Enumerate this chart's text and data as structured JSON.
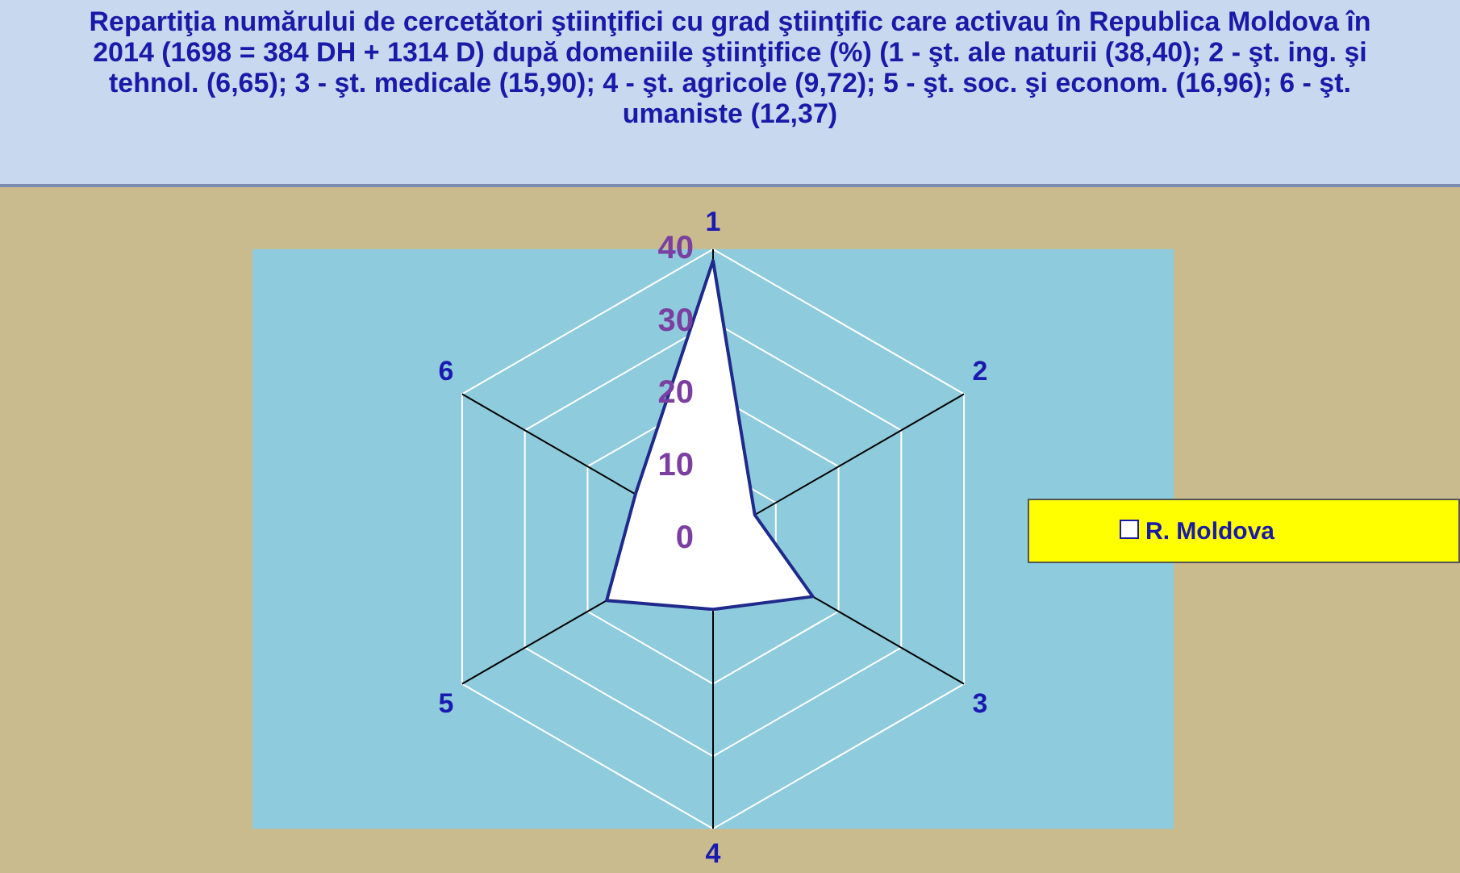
{
  "chart_data": {
    "type": "radar",
    "title": "Repartiţia numărului de cercetători ştiinţifici cu grad ştiinţific care activau în Republica Moldova în 2014 (1698 = 384 DH + 1314 D) după domeniile ştiinţifice (%) (1 - şt. ale naturii (38,40); 2 - şt. ing. şi tehnol. (6,65); 3 - şt. medicale (15,90); 4 - şt. agricole (9,72); 5 - şt. soc. şi econom. (16,96); 6 - şt. umaniste (12,37)",
    "categories": [
      "1",
      "2",
      "3",
      "4",
      "5",
      "6"
    ],
    "series": [
      {
        "name": "R. Moldova",
        "color": "#1f2a8c",
        "values": [
          38.4,
          6.65,
          15.9,
          9.72,
          16.96,
          12.37
        ]
      }
    ],
    "ylim": [
      0,
      40
    ],
    "yticks": [
      0,
      10,
      20,
      30,
      40
    ],
    "grid": true,
    "legend": "right",
    "marker": "none"
  }
}
